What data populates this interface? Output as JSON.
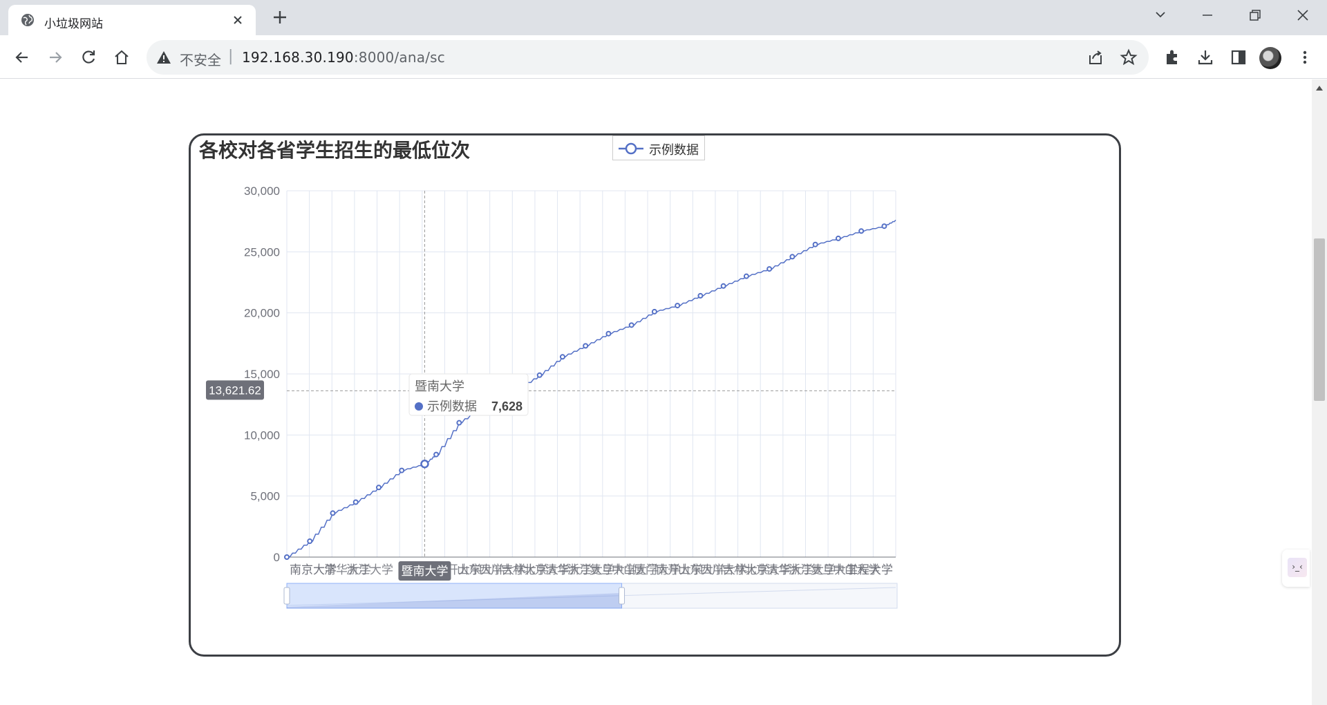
{
  "browser": {
    "tab_title": "小垃圾网站",
    "security_label": "不安全",
    "url_host": "192.168.30.190",
    "url_path": ":8000/ana/sc"
  },
  "colors": {
    "series": "#5470c6",
    "grid": "#e0e6f1",
    "axis_text": "#6e7079",
    "tooltip_bg": "#ffffff",
    "pointer_label_bg": "#6e7079"
  },
  "chart": {
    "title": "各校对各省学生招生的最低位次",
    "legend": "示例数据",
    "pointer_y_label": "13,621.62",
    "pointer_x_label": "暨南大学",
    "tooltip": {
      "category": "暨南大学",
      "series": "示例数据",
      "value": "7,628"
    }
  },
  "chart_data": {
    "type": "line",
    "title": "各校对各省学生招生的最低位次",
    "legend": [
      "示例数据"
    ],
    "ylim": [
      0,
      30000
    ],
    "yticks": [
      "0",
      "5,000",
      "10,000",
      "15,000",
      "20,000",
      "25,000",
      "30,000"
    ],
    "grid": true,
    "legend_position": "top-center",
    "series": [
      {
        "name": "示例数据",
        "x_index": [
          0,
          2,
          4,
          6,
          8,
          10,
          12,
          13,
          15,
          17,
          20,
          22,
          24,
          26,
          28,
          30,
          32,
          34,
          36,
          38,
          40,
          42,
          44,
          46,
          48,
          50,
          52
        ],
        "values": [
          0,
          1300,
          3600,
          4500,
          5700,
          7100,
          7628,
          8400,
          11000,
          12300,
          13700,
          14900,
          16400,
          17300,
          18300,
          19000,
          20100,
          20600,
          21400,
          22200,
          23000,
          23600,
          24600,
          25600,
          26100,
          26700,
          27100
        ]
      }
    ],
    "x_last_index": 53,
    "x_last_value": 27600,
    "visible_tick_label": "南京大学",
    "visible_tick_label_end": "工程大学"
  }
}
